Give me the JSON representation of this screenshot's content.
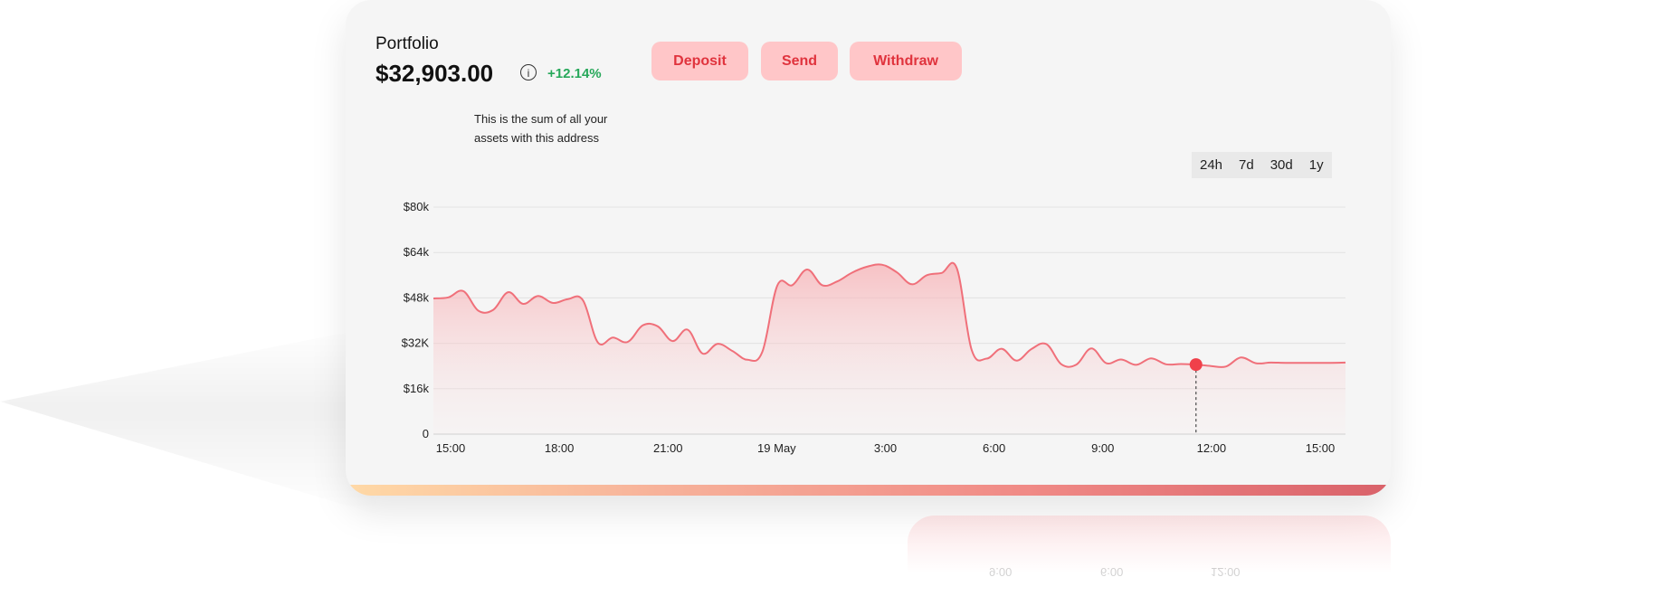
{
  "portfolio": {
    "label": "Portfolio",
    "value": "$32,903.00",
    "info_icon": "info-icon",
    "change": "+12.14%",
    "info_tooltip": "This is the sum of all your assets with this address"
  },
  "actions": {
    "deposit": "Deposit",
    "send": "Send",
    "withdraw": "Withdraw"
  },
  "ranges": [
    "24h",
    "7d",
    "30d",
    "1y"
  ],
  "selected_range": "24h",
  "colors": {
    "accent": "#f0404a",
    "line": "#f0707a",
    "button_bg": "#ffc6c8",
    "positive": "#27a85a"
  },
  "reflection_labels": [
    "9:00",
    "6:00",
    "12:00"
  ],
  "chart_data": {
    "type": "area",
    "x_tick_labels": [
      "15:00",
      "18:00",
      "21:00",
      "19 May",
      "3:00",
      "6:00",
      "9:00",
      "12:00",
      "15:00"
    ],
    "y_tick_labels": [
      "0",
      "$16k",
      "$32K",
      "$48k",
      "$64k",
      "$80k"
    ],
    "ylim": [
      0,
      80000
    ],
    "grid": true,
    "highlight_index": 51,
    "values": [
      47800,
      48200,
      50400,
      43500,
      43800,
      50000,
      45900,
      48700,
      46200,
      47600,
      47200,
      32300,
      34000,
      32500,
      38300,
      38000,
      32800,
      36800,
      28400,
      31800,
      29300,
      26200,
      29000,
      52400,
      52500,
      58000,
      52500,
      53800,
      56900,
      59000,
      59700,
      57000,
      52800,
      56000,
      56800,
      58500,
      29600,
      26600,
      30100,
      25900,
      30000,
      31700,
      24600,
      24500,
      30200,
      25000,
      26300,
      24400,
      26700,
      24600,
      24700,
      24500,
      24000,
      23800,
      27000,
      25000,
      25200,
      25100,
      25100,
      25100,
      25100,
      25200
    ]
  }
}
